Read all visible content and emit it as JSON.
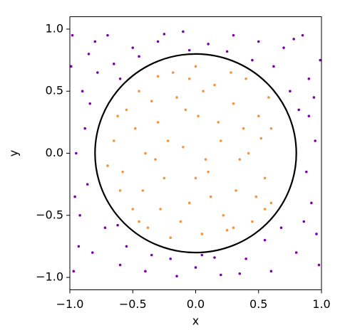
{
  "chart_data": {
    "type": "scatter",
    "x_label": "x",
    "y_label": "y",
    "xlim": [
      -1,
      1
    ],
    "ylim": [
      -1.1,
      1.1
    ],
    "xticks": [
      {
        "value": -1,
        "label": "−1.0"
      },
      {
        "value": -0.5,
        "label": "−0.5"
      },
      {
        "value": 0,
        "label": "0.0"
      },
      {
        "value": 0.5,
        "label": "0.5"
      },
      {
        "value": 1,
        "label": "1.0"
      }
    ],
    "yticks": [
      {
        "value": -1,
        "label": "−1.0"
      },
      {
        "value": -0.5,
        "label": "−0.5"
      },
      {
        "value": 0,
        "label": "0.0"
      },
      {
        "value": 0.5,
        "label": "0.5"
      },
      {
        "value": 1,
        "label": "1.0"
      }
    ],
    "circle": {
      "center": [
        0,
        0
      ],
      "radius": 0.8,
      "color": "#000000"
    },
    "series": [
      {
        "color": "#f7943c",
        "x": [
          -0.65,
          -0.6,
          -0.55,
          -0.5,
          -0.45,
          -0.4,
          -0.38,
          -0.3,
          -0.3,
          -0.25,
          -0.2,
          -0.15,
          -0.1,
          -0.05,
          0.0,
          0.02,
          0.05,
          0.1,
          0.15,
          0.2,
          0.22,
          0.3,
          0.32,
          0.4,
          0.42,
          0.45,
          0.5,
          0.55,
          0.58,
          0.6,
          -0.7,
          -0.62,
          -0.58,
          -0.48,
          -0.42,
          -0.35,
          -0.28,
          -0.22,
          -0.18,
          -0.12,
          -0.08,
          0.0,
          0.06,
          0.12,
          0.18,
          0.25,
          0.28,
          0.35,
          0.38,
          0.48,
          0.52,
          0.6,
          0.55,
          -0.05,
          0.08,
          -0.32,
          -0.45,
          0.3
        ],
        "y": [
          0.1,
          -0.3,
          0.35,
          -0.45,
          0.5,
          0.0,
          -0.6,
          0.62,
          0.25,
          -0.2,
          -0.68,
          0.45,
          0.05,
          -0.4,
          0.7,
          0.3,
          -0.65,
          -0.15,
          0.55,
          0.1,
          -0.5,
          0.4,
          -0.3,
          0.6,
          0.0,
          -0.55,
          0.3,
          -0.2,
          0.45,
          -0.4,
          -0.1,
          0.3,
          -0.15,
          0.2,
          -0.3,
          0.42,
          -0.45,
          0.1,
          0.65,
          -0.55,
          0.35,
          -0.2,
          0.5,
          -0.35,
          0.25,
          -0.62,
          0.65,
          -0.05,
          0.2,
          -0.35,
          0.12,
          0.2,
          -0.45,
          0.6,
          -0.05,
          -0.05,
          -0.55,
          -0.6
        ]
      },
      {
        "color": "#7e00ad",
        "x": [
          -0.98,
          -0.9,
          -0.95,
          -0.92,
          -0.97,
          -0.85,
          -0.82,
          -0.7,
          -0.6,
          -0.5,
          -0.4,
          -0.3,
          -0.2,
          -0.1,
          0.0,
          0.1,
          0.2,
          0.3,
          0.4,
          0.5,
          0.6,
          0.7,
          0.8,
          0.9,
          0.95,
          0.92,
          0.98,
          0.85,
          0.88,
          0.82,
          -0.88,
          -0.86,
          -0.78,
          -0.72,
          -0.65,
          -0.55,
          0.62,
          0.68,
          0.75,
          -0.99,
          -0.93,
          0.99,
          0.96,
          -0.15,
          0.25,
          -0.35,
          0.45,
          -0.45,
          0.05,
          -0.05,
          0.15,
          0.9,
          -0.84,
          0.86,
          -0.96,
          0.94,
          -0.8,
          0.78,
          -0.25,
          0.35,
          0.55,
          -0.6,
          -0.62
        ],
        "y": [
          0.95,
          0.5,
          0.0,
          -0.5,
          -0.95,
          0.8,
          -0.8,
          0.95,
          -0.9,
          0.85,
          -0.95,
          0.9,
          -0.85,
          0.98,
          -0.92,
          0.88,
          -0.98,
          0.95,
          -0.85,
          0.9,
          -0.95,
          0.85,
          -0.8,
          0.6,
          0.1,
          -0.4,
          -0.9,
          0.95,
          -0.15,
          0.35,
          0.2,
          -0.25,
          0.65,
          -0.6,
          0.72,
          -0.75,
          0.7,
          -0.6,
          0.5,
          0.7,
          -0.75,
          0.75,
          -0.65,
          -0.99,
          0.82,
          -0.82,
          0.75,
          0.78,
          -0.82,
          0.83,
          -0.84,
          0.3,
          0.4,
          -0.55,
          -0.35,
          0.45,
          0.9,
          0.92,
          0.96,
          -0.97,
          -0.7,
          0.6,
          -0.58
        ]
      }
    ]
  }
}
